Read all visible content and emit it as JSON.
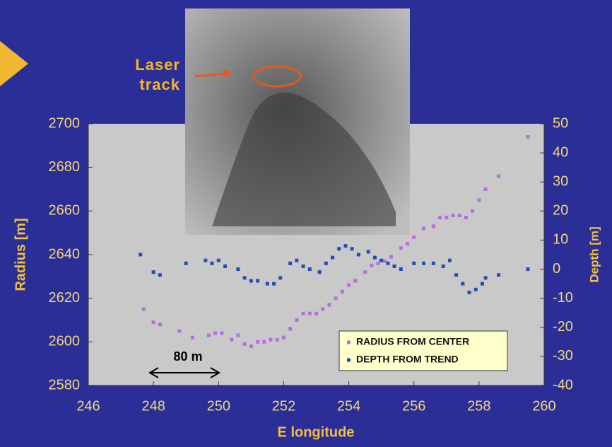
{
  "chart_data": {
    "type": "scatter",
    "xlabel": "E longitude",
    "ylabel": "Radius [m]",
    "y2label": "Depth [m]",
    "annotations": [
      "Laser track",
      "80 m"
    ],
    "xlim": [
      246,
      260
    ],
    "xticks": [
      246,
      248,
      250,
      252,
      254,
      256,
      258,
      260
    ],
    "ylim": [
      2580,
      2700
    ],
    "yticks": [
      2580,
      2600,
      2620,
      2640,
      2660,
      2680,
      2700
    ],
    "y2lim": [
      -40,
      50
    ],
    "y2ticks": [
      -40,
      -30,
      -20,
      -10,
      0,
      10,
      20,
      30,
      40,
      50
    ],
    "legend": "lower right",
    "series": [
      {
        "name": "RADIUS FROM CENTER",
        "color": "#b46fdc",
        "axis": "y",
        "x": [
          247.7,
          248.0,
          248.2,
          248.8,
          249.2,
          249.7,
          249.9,
          250.1,
          250.4,
          250.6,
          250.8,
          251.0,
          251.2,
          251.4,
          251.6,
          251.8,
          252.0,
          252.2,
          252.4,
          252.6,
          252.8,
          253.0,
          253.2,
          253.4,
          253.6,
          253.8,
          254.0,
          254.2,
          254.5,
          254.7,
          254.9,
          255.1,
          255.3,
          255.6,
          255.8,
          256.0,
          256.3,
          256.6,
          256.8,
          257.0,
          257.2,
          257.4,
          257.6,
          257.8,
          258.0,
          258.2,
          258.6,
          259.5
        ],
        "values": [
          2615,
          2609,
          2608,
          2605,
          2602,
          2603,
          2604,
          2604,
          2601,
          2603,
          2599,
          2598,
          2600,
          2600,
          2601,
          2601,
          2602,
          2606,
          2610,
          2613,
          2613,
          2613,
          2615,
          2617,
          2620,
          2623,
          2626,
          2628,
          2632,
          2635,
          2636,
          2637,
          2639,
          2643,
          2645,
          2648,
          2652,
          2653,
          2657,
          2657,
          2658,
          2658,
          2657,
          2660,
          2665,
          2670,
          2676,
          2694
        ]
      },
      {
        "name": "DEPTH FROM TREND",
        "color": "#1f4fb4",
        "axis": "y2",
        "x": [
          247.6,
          248.0,
          248.2,
          249.0,
          249.6,
          249.8,
          250.0,
          250.2,
          250.6,
          250.8,
          251.0,
          251.2,
          251.5,
          251.7,
          251.9,
          252.2,
          252.4,
          252.6,
          252.8,
          253.1,
          253.3,
          253.5,
          253.7,
          253.9,
          254.1,
          254.3,
          254.6,
          254.8,
          255.0,
          255.2,
          255.4,
          255.6,
          256.0,
          256.3,
          256.6,
          256.9,
          257.1,
          257.3,
          257.5,
          257.7,
          257.9,
          258.1,
          258.2,
          258.6,
          259.5
        ],
        "values": [
          5,
          -1,
          -2,
          2,
          3,
          2,
          3,
          1,
          0,
          -3,
          -4,
          -4,
          -5,
          -5,
          -3,
          2,
          3,
          1,
          0,
          -1,
          2,
          4,
          7,
          8,
          7,
          5,
          6,
          4,
          3,
          2,
          1,
          0,
          2,
          2,
          2,
          1,
          3,
          -2,
          -5,
          -8,
          -7,
          -5,
          -3,
          -2,
          0
        ]
      }
    ]
  }
}
